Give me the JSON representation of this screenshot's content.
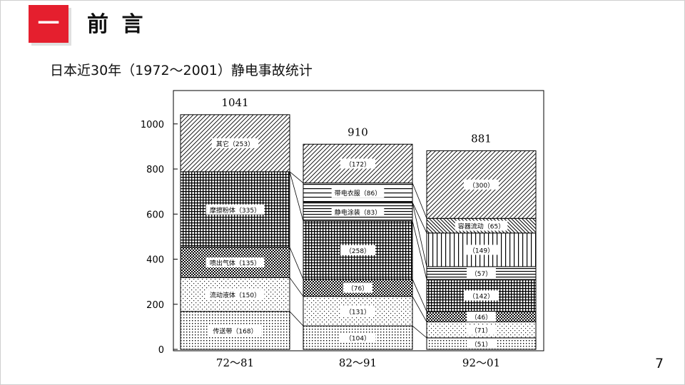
{
  "header": {
    "badge_text": "一",
    "title": "前 言"
  },
  "subtitle": "日本近30年（1972～2001）静电事故统计",
  "page_number": "7",
  "chart_data": {
    "type": "bar",
    "stacked": true,
    "categories": [
      "72～81",
      "82～91",
      "92～01"
    ],
    "totals": [
      "1041",
      "910",
      "881"
    ],
    "ylim": [
      0,
      1100
    ],
    "yticks": [
      "0",
      "200",
      "400",
      "600",
      "800",
      "1000"
    ],
    "grid": false,
    "segments": [
      [
        {
          "label": "传送带",
          "count": 168,
          "text": "传送带（168）",
          "pattern": "dots"
        },
        {
          "label": "流动液体",
          "count": 150,
          "text": "流动液体（150）",
          "pattern": "dots-light"
        },
        {
          "label": "喷出气体",
          "count": 135,
          "text": "喷出气体（135）",
          "pattern": "checker-dense"
        },
        {
          "label": "摩擦粉体",
          "count": 335,
          "text": "摩擦粉体（335）",
          "pattern": "grid"
        },
        {
          "label": "其它",
          "count": 253,
          "text": "其它（253）",
          "pattern": "diagonal"
        }
      ],
      [
        {
          "count": 104,
          "text": "（104）",
          "pattern": "dots"
        },
        {
          "count": 131,
          "text": "（131）",
          "pattern": "dots-light"
        },
        {
          "count": 76,
          "text": "（76）",
          "pattern": "checker-dense"
        },
        {
          "count": 258,
          "text": "（258）",
          "pattern": "grid"
        },
        {
          "label": "静电涂装",
          "count": 83,
          "text": "静电涂装（83）",
          "pattern": "hlines"
        },
        {
          "label": "带电衣服",
          "count": 86,
          "text": "带电衣服（86）",
          "pattern": "hlines-sparse"
        },
        {
          "count": 172,
          "text": "（172）",
          "pattern": "diagonal"
        }
      ],
      [
        {
          "count": 51,
          "text": "（51）",
          "pattern": "dots"
        },
        {
          "count": 71,
          "text": "（71）",
          "pattern": "dots-light"
        },
        {
          "count": 46,
          "text": "（46）",
          "pattern": "checker-dense"
        },
        {
          "count": 142,
          "text": "（142）",
          "pattern": "grid"
        },
        {
          "count": 57,
          "text": "（57）",
          "pattern": "hlines"
        },
        {
          "count": 149,
          "text": "（149）",
          "pattern": "vlines"
        },
        {
          "label": "容器流动",
          "count": 65,
          "text": "容器流动（65）",
          "pattern": "diagonal-back"
        },
        {
          "count": 300,
          "text": "（300）",
          "pattern": "diagonal"
        }
      ]
    ],
    "connectors": [
      {
        "from_bar": 0,
        "to_bar": 1,
        "pairs": [
          [
            1,
            1
          ],
          [
            2,
            2
          ],
          [
            3,
            3
          ],
          [
            4,
            4
          ],
          [
            4,
            6
          ]
        ]
      },
      {
        "from_bar": 1,
        "to_bar": 2,
        "pairs": [
          [
            1,
            1
          ],
          [
            2,
            2
          ],
          [
            3,
            3
          ],
          [
            4,
            4
          ],
          [
            5,
            5
          ],
          [
            5,
            6
          ],
          [
            6,
            7
          ]
        ]
      }
    ]
  }
}
